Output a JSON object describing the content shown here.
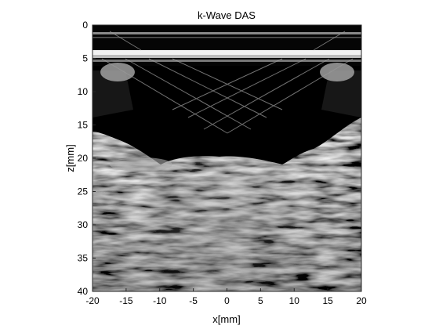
{
  "chart_data": {
    "type": "heatmap",
    "title": "k-Wave DAS",
    "xlabel": "x[mm]",
    "ylabel": "z[mm]",
    "xlim": [
      -20,
      20
    ],
    "ylim": [
      0,
      40
    ],
    "y_reversed": true,
    "colormap": "gray",
    "x_ticks": [
      -20,
      -15,
      -10,
      -5,
      0,
      5,
      10,
      15,
      20
    ],
    "y_ticks": [
      0,
      5,
      10,
      15,
      20,
      25,
      30,
      35,
      40
    ],
    "x_tick_labels": [
      "-20",
      "-15",
      "-10",
      "-5",
      "0",
      "5",
      "10",
      "15",
      "20"
    ],
    "y_tick_labels": [
      "0",
      "5",
      "10",
      "15",
      "20",
      "25",
      "30",
      "35",
      "40"
    ],
    "features": [
      {
        "name": "bright horizontal reflector",
        "z_mm": [
          4.2,
          5.6
        ],
        "x_mm": [
          -20,
          20
        ],
        "intensity": 0.97
      },
      {
        "name": "thin reflector",
        "z_mm": [
          1.2,
          1.6
        ],
        "x_mm": [
          -20,
          20
        ],
        "intensity": 0.55
      },
      {
        "name": "dark anechoic band",
        "z_mm": [
          6.5,
          19.5
        ],
        "intensity": 0.04
      },
      {
        "name": "speckle tissue region",
        "z_mm": [
          13.5,
          40
        ],
        "intensity": 0.45
      }
    ]
  }
}
